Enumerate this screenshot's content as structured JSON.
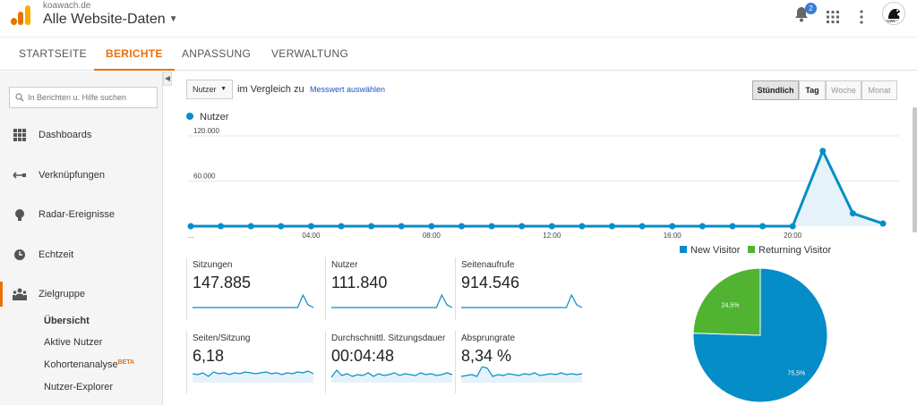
{
  "header": {
    "account": "koawach.de",
    "property": "Alle Website-Daten",
    "notifications_count": "2",
    "avatar_text": "~uwe~",
    "brand_colors": {
      "orange": "#f9ab00",
      "dark_orange": "#e37400"
    }
  },
  "tabs": [
    {
      "label": "STARTSEITE"
    },
    {
      "label": "BERICHTE"
    },
    {
      "label": "ANPASSUNG"
    },
    {
      "label": "VERWALTUNG"
    }
  ],
  "sidebar": {
    "search_placeholder": "In Berichten u. Hilfe suchen",
    "items": [
      {
        "label": "Dashboards",
        "icon": "grid-icon"
      },
      {
        "label": "Verknüpfungen",
        "icon": "arrows-icon"
      },
      {
        "label": "Radar-Ereignisse",
        "icon": "bulb-icon"
      },
      {
        "label": "Echtzeit",
        "icon": "clock-icon"
      },
      {
        "label": "Zielgruppe",
        "icon": "people-icon"
      }
    ],
    "subitems": [
      {
        "label": "Übersicht"
      },
      {
        "label": "Aktive Nutzer"
      },
      {
        "label": "Kohortenanalyse",
        "badge": "BETA"
      },
      {
        "label": "Nutzer-Explorer"
      }
    ]
  },
  "toolbar": {
    "metric": "Nutzer",
    "compare_text": "im Vergleich zu",
    "compare_link": "Messwert auswählen",
    "periods": [
      "Stündlich",
      "Tag",
      "Woche",
      "Monat"
    ],
    "active_period": "Stündlich"
  },
  "chart_data": {
    "type": "area",
    "series": [
      {
        "name": "Nutzer",
        "values": [
          0,
          0,
          0,
          0,
          0,
          0,
          0,
          0,
          0,
          0,
          0,
          0,
          0,
          0,
          0,
          0,
          0,
          0,
          0,
          0,
          0,
          100000,
          17000,
          3500
        ]
      }
    ],
    "x": [
      0,
      1,
      2,
      3,
      4,
      5,
      6,
      7,
      8,
      9,
      10,
      11,
      12,
      13,
      14,
      15,
      16,
      17,
      18,
      19,
      20,
      21,
      22,
      23
    ],
    "x_tick_labels": [
      "...",
      "04:00",
      "08:00",
      "12:00",
      "16:00",
      "20:00"
    ],
    "y_tick_labels": [
      "120.000",
      "60.000"
    ],
    "ylim": [
      0,
      120000
    ],
    "color": "#058dc7"
  },
  "metrics": [
    {
      "title": "Sitzungen",
      "value": "147.885"
    },
    {
      "title": "Nutzer",
      "value": "111.840"
    },
    {
      "title": "Seitenaufrufe",
      "value": "914.546"
    },
    {
      "title": "Seiten/Sitzung",
      "value": "6,18"
    },
    {
      "title": "Durchschnittl. Sitzungsdauer",
      "value": "00:04:48"
    },
    {
      "title": "Absprungrate",
      "value": "8,34 %"
    }
  ],
  "pie": {
    "type": "pie",
    "slices": [
      {
        "name": "New Visitor",
        "value": 75.5,
        "label": "75,5%",
        "color": "#058dc7"
      },
      {
        "name": "Returning Visitor",
        "value": 24.5,
        "label": "24,5%",
        "color": "#50b432"
      }
    ]
  }
}
